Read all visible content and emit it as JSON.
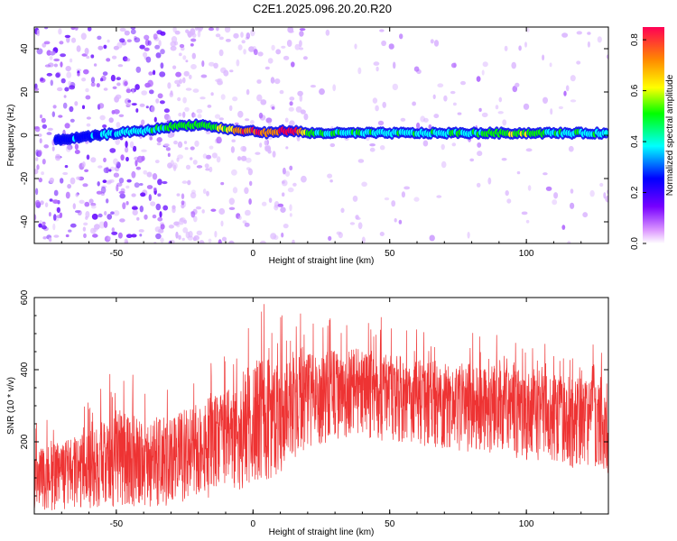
{
  "title": "C2E1.2025.096.20.20.R20",
  "colors": {
    "snr_line": "#ee3333",
    "ridge_low": "#3333ff",
    "ridge_mid": "#22dd88",
    "ridge_high": "#ff2222",
    "scatter": "#7a33ff"
  },
  "chart_data": [
    {
      "type": "heatmap",
      "xlabel": "Height of straight line (km)",
      "ylabel": "Frequency (Hz)",
      "xlim": [
        -80,
        130
      ],
      "ylim": [
        -50,
        50
      ],
      "xticks": [
        "-50",
        "0",
        "50",
        "100"
      ],
      "yticks": [
        "-40",
        "-20",
        "0",
        "20",
        "40"
      ],
      "colorbar": {
        "label": "Normalized spectral amplitude",
        "range": [
          0.0,
          0.85
        ],
        "ticks": [
          "0.0",
          "0.2",
          "0.4",
          "0.6",
          "0.8"
        ],
        "colors": [
          "#ffffff",
          "#dd88ff",
          "#6600ff",
          "#0000ff",
          "#00ffff",
          "#00ff00",
          "#ffff00",
          "#ff8800",
          "#ff0044"
        ]
      },
      "ridge": [
        {
          "x": -72,
          "y": -2,
          "value": 0.25
        },
        {
          "x": -62,
          "y": -1,
          "value": 0.3
        },
        {
          "x": -50,
          "y": 1,
          "value": 0.35
        },
        {
          "x": -40,
          "y": 2,
          "value": 0.4
        },
        {
          "x": -30,
          "y": 4,
          "value": 0.45
        },
        {
          "x": -20,
          "y": 5,
          "value": 0.5
        },
        {
          "x": -10,
          "y": 3,
          "value": 0.5
        },
        {
          "x": -5,
          "y": 2,
          "value": 0.7
        },
        {
          "x": 0,
          "y": 2,
          "value": 0.75
        },
        {
          "x": 5,
          "y": 1,
          "value": 0.7
        },
        {
          "x": 10,
          "y": 2,
          "value": 0.75
        },
        {
          "x": 15,
          "y": 2,
          "value": 0.8
        },
        {
          "x": 20,
          "y": 1,
          "value": 0.45
        },
        {
          "x": 40,
          "y": 1,
          "value": 0.4
        },
        {
          "x": 60,
          "y": 1,
          "value": 0.4
        },
        {
          "x": 80,
          "y": 1,
          "value": 0.4
        },
        {
          "x": 95,
          "y": 1,
          "value": 0.55
        },
        {
          "x": 110,
          "y": 1,
          "value": 0.4
        },
        {
          "x": 130,
          "y": 1,
          "value": 0.4
        }
      ]
    },
    {
      "type": "line",
      "xlabel": "Height of straight line (km)",
      "ylabel": "SNR (10 * v/v)",
      "xlim": [
        -80,
        130
      ],
      "ylim": [
        0,
        600
      ],
      "xticks": [
        "-50",
        "0",
        "50",
        "100"
      ],
      "yticks": [
        "200",
        "400",
        "600"
      ],
      "series": [
        {
          "x": [
            -80,
            -70,
            -60,
            -50,
            -40,
            -30,
            -20,
            -10,
            0,
            10,
            20,
            30,
            40,
            50,
            60,
            70,
            80,
            90,
            100,
            110,
            120,
            130
          ],
          "mean": [
            110,
            120,
            125,
            150,
            160,
            175,
            200,
            230,
            260,
            300,
            330,
            350,
            355,
            350,
            345,
            335,
            325,
            320,
            310,
            300,
            285,
            280
          ],
          "peak": [
            250,
            280,
            330,
            430,
            380,
            360,
            430,
            440,
            600,
            560,
            560,
            560,
            570,
            540,
            520,
            510,
            510,
            500,
            480,
            470,
            470,
            470
          ],
          "low": [
            10,
            10,
            15,
            20,
            20,
            20,
            30,
            40,
            80,
            110,
            180,
            200,
            210,
            200,
            190,
            180,
            170,
            160,
            150,
            140,
            120,
            110
          ]
        }
      ]
    }
  ]
}
